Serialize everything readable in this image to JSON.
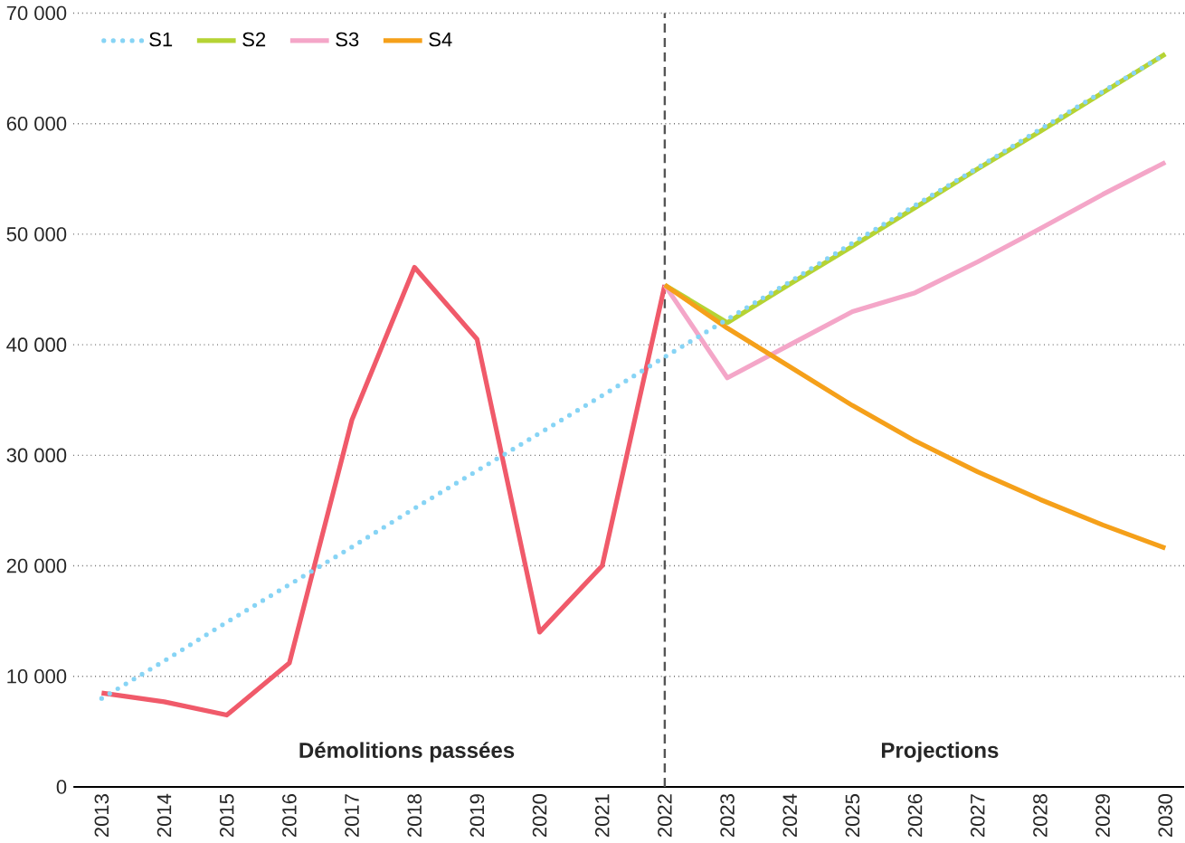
{
  "chart_data": {
    "type": "line",
    "x": [
      2013,
      2014,
      2015,
      2016,
      2017,
      2018,
      2019,
      2020,
      2021,
      2022,
      2023,
      2024,
      2025,
      2026,
      2027,
      2028,
      2029,
      2030
    ],
    "series": [
      {
        "name": "S1",
        "color": "#87d4f5",
        "line_style": "dotted",
        "values": [
          8000,
          11400,
          14900,
          18300,
          21700,
          25200,
          28600,
          32000,
          35400,
          38900,
          42300,
          45700,
          49200,
          52600,
          56000,
          59500,
          62900,
          66300
        ]
      },
      {
        "name": "S2",
        "color": "#b5d334",
        "values": [
          null,
          null,
          null,
          null,
          null,
          null,
          null,
          null,
          null,
          45400,
          42000,
          45500,
          48900,
          52400,
          55900,
          59300,
          62800,
          66300
        ]
      },
      {
        "name": "S3",
        "color": "#f4a6c8",
        "values": [
          null,
          null,
          null,
          null,
          null,
          null,
          null,
          null,
          null,
          45400,
          37000,
          40000,
          43000,
          44700,
          47500,
          50500,
          53600,
          56500
        ]
      },
      {
        "name": "S4",
        "color": "#f5a01a",
        "values": [
          null,
          null,
          null,
          null,
          null,
          null,
          null,
          null,
          null,
          45400,
          41500,
          38000,
          34500,
          31300,
          28500,
          26000,
          23700,
          21600
        ]
      },
      {
        "color": "#f05a6a",
        "values": [
          8500,
          7700,
          6500,
          11200,
          33200,
          47000,
          40500,
          14000,
          20000,
          45400,
          null,
          null,
          null,
          null,
          null,
          null,
          null,
          null
        ]
      }
    ],
    "xlim": [
      2012.55,
      2030.3
    ],
    "xticks": [
      2013,
      2014,
      2015,
      2016,
      2017,
      2018,
      2019,
      2020,
      2021,
      2022,
      2023,
      2024,
      2025,
      2026,
      2027,
      2028,
      2029,
      2030
    ],
    "ylim": [
      0,
      70000
    ],
    "yticks": [
      0,
      {
        "value": 10000,
        "label": "10 000"
      },
      {
        "value": 20000,
        "label": "20 000"
      },
      {
        "value": 30000,
        "label": "30 000"
      },
      {
        "value": 40000,
        "label": "40 000"
      },
      {
        "value": 50000,
        "label": "50 000"
      },
      {
        "value": 60000,
        "label": "60 000"
      },
      {
        "value": 70000,
        "label": "70 000"
      }
    ],
    "ref_lines": [
      {
        "axis": "x",
        "value": 2022,
        "color": "#555555",
        "line_style": "dashed"
      }
    ],
    "annotations": [
      "Démolitions passées",
      "Projections"
    ],
    "grid": "y",
    "legend": "top left"
  }
}
